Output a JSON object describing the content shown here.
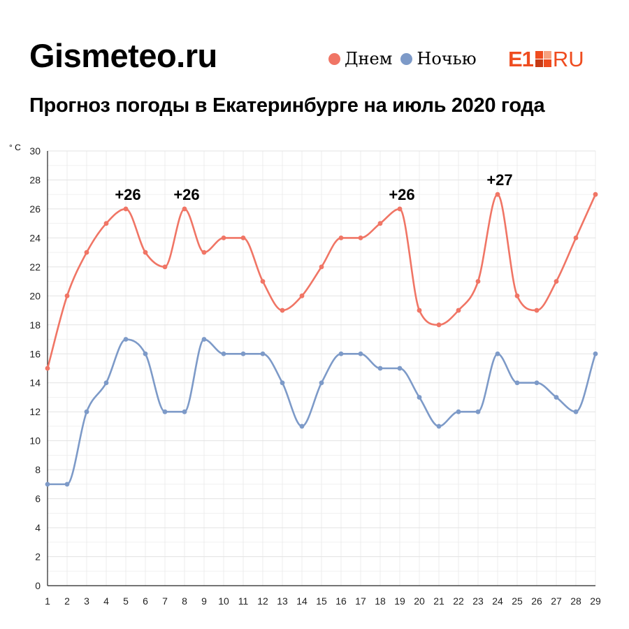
{
  "header": {
    "brand": "Gismeteo.ru",
    "title": "Прогноз погоды в Екатеринбурге на июль 2020 года",
    "logo": {
      "text_main": "E1",
      "text_suffix": "RU",
      "color": "#ef4c1f"
    }
  },
  "legend": [
    {
      "label": "Днем",
      "color": "#f07565"
    },
    {
      "label": "Ночью",
      "color": "#7d9ac8"
    }
  ],
  "chart_data": {
    "type": "line",
    "title": "Прогноз погоды в Екатеринбурге на июль 2020 года",
    "ylabel": "° C",
    "xlabel": "",
    "x": [
      1,
      2,
      3,
      4,
      5,
      6,
      7,
      8,
      9,
      10,
      11,
      12,
      13,
      14,
      15,
      16,
      17,
      18,
      19,
      20,
      21,
      22,
      23,
      24,
      25,
      26,
      27,
      28,
      29
    ],
    "ylim": [
      0,
      30
    ],
    "yticks": [
      0,
      2,
      4,
      6,
      8,
      10,
      12,
      14,
      16,
      18,
      20,
      22,
      24,
      26,
      28,
      30
    ],
    "grid": true,
    "legend_position": "top-right",
    "series": [
      {
        "name": "Днем",
        "color": "#f07565",
        "values": [
          15,
          20,
          23,
          25,
          26,
          23,
          22,
          26,
          23,
          24,
          24,
          21,
          19,
          20,
          22,
          24,
          24,
          25,
          26,
          19,
          18,
          19,
          21,
          27,
          20,
          19,
          21,
          24,
          27
        ]
      },
      {
        "name": "Ночью",
        "color": "#7d9ac8",
        "values": [
          7,
          7,
          12,
          14,
          17,
          16,
          12,
          12,
          17,
          16,
          16,
          16,
          14,
          11,
          14,
          16,
          16,
          15,
          15,
          13,
          11,
          12,
          12,
          16,
          14,
          14,
          13,
          12,
          16
        ]
      }
    ],
    "annotations": [
      {
        "x": 5,
        "y": 26,
        "text": "+26"
      },
      {
        "x": 8,
        "y": 26,
        "text": "+26"
      },
      {
        "x": 19,
        "y": 26,
        "text": "+26"
      },
      {
        "x": 24,
        "y": 27,
        "text": "+27"
      }
    ]
  }
}
